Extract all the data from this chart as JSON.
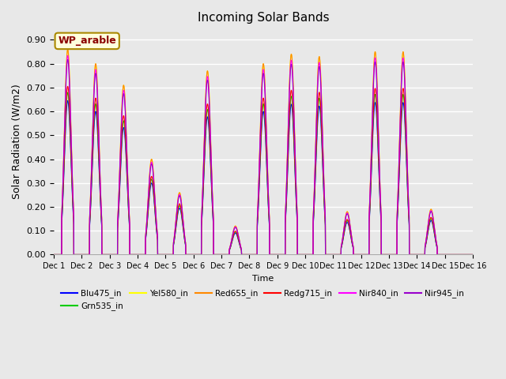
{
  "title": "Incoming Solar Bands",
  "xlabel": "Time",
  "ylabel": "Solar Radiation (W/m2)",
  "ylim": [
    0.0,
    0.95
  ],
  "yticks": [
    0.0,
    0.1,
    0.2,
    0.3,
    0.4,
    0.5,
    0.6,
    0.7,
    0.8,
    0.9
  ],
  "annotation_text": "WP_arable",
  "annotation_color": "#8b0000",
  "annotation_bg": "#ffffdd",
  "annotation_edge": "#aa8800",
  "series": [
    {
      "name": "Blu475_in",
      "color": "#0000ff"
    },
    {
      "name": "Grn535_in",
      "color": "#00cc00"
    },
    {
      "name": "Yel580_in",
      "color": "#ffff00"
    },
    {
      "name": "Red655_in",
      "color": "#ff8800"
    },
    {
      "name": "Redg715_in",
      "color": "#ff0000"
    },
    {
      "name": "Nir840_in",
      "color": "#ff00ff"
    },
    {
      "name": "Nir945_in",
      "color": "#9900cc"
    }
  ],
  "day_peaks_yel": [
    0.86,
    0.8,
    0.71,
    0.4,
    0.26,
    0.77,
    0.12,
    0.8,
    0.84,
    0.83,
    0.18,
    0.85,
    0.85,
    0.19,
    0.0
  ],
  "band_scale_blu": 0.75,
  "band_scale_grn": 0.79,
  "band_scale_yel": 1.0,
  "band_scale_ora": 1.0,
  "band_scale_red": 0.82,
  "band_scale_mag": 0.97,
  "band_scale_pur": 0.95,
  "num_days": 15,
  "pts_per_day": 288,
  "sigma": 0.12,
  "day_start": 0.28,
  "day_end": 0.72,
  "legend_ncol": 6,
  "fig_width": 6.4,
  "fig_height": 4.8,
  "dpi": 100
}
